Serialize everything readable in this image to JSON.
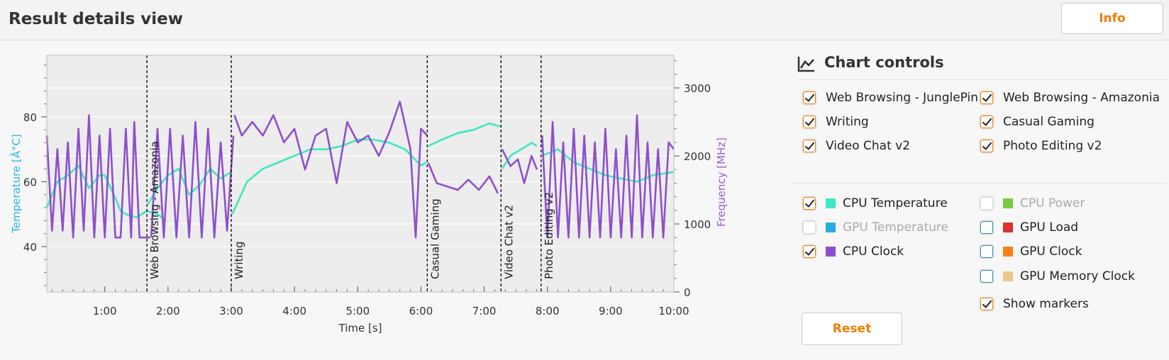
{
  "header": {
    "title": "Result details view",
    "info_label": "Info"
  },
  "controls": {
    "title": "Chart controls",
    "tests": [
      {
        "label": "Web Browsing - JunglePin",
        "checked": true
      },
      {
        "label": "Web Browsing - Amazonia",
        "checked": true
      },
      {
        "label": "Writing",
        "checked": true
      },
      {
        "label": "Casual Gaming",
        "checked": true
      },
      {
        "label": "Video Chat v2",
        "checked": true
      },
      {
        "label": "Photo Editing v2",
        "checked": true
      }
    ],
    "metrics": [
      {
        "label": "CPU Temperature",
        "checked": true,
        "enabled": true,
        "color": "#3de8c0"
      },
      {
        "label": "CPU Power",
        "checked": false,
        "enabled": false,
        "color": "#7ac943"
      },
      {
        "label": "GPU Temperature",
        "checked": false,
        "enabled": false,
        "color": "#29abe2"
      },
      {
        "label": "GPU Load",
        "checked": false,
        "enabled": true,
        "color": "#e03030"
      },
      {
        "label": "CPU Clock",
        "checked": true,
        "enabled": true,
        "color": "#8f4fcc"
      },
      {
        "label": "GPU Clock",
        "checked": false,
        "enabled": true,
        "color": "#f7821b"
      },
      {
        "label": "GPU Memory Clock",
        "checked": false,
        "enabled": true,
        "color": "#e8c98a"
      }
    ],
    "show_markers": {
      "label": "Show markers",
      "checked": true
    },
    "reset_label": "Reset"
  },
  "chart_data": {
    "type": "line",
    "xlabel": "Time [s]",
    "ylabel_left": "Temperature [Â°C]",
    "ylabel_right": "Frequency [MHz]",
    "xlim": [
      5,
      600
    ],
    "ylim_left": [
      26,
      99
    ],
    "ylim_right": [
      0,
      3480
    ],
    "x_ticks": [
      "1:00",
      "2:00",
      "3:00",
      "4:00",
      "5:00",
      "6:00",
      "7:00",
      "8:00",
      "9:00",
      "10:00"
    ],
    "x_tick_values": [
      60,
      120,
      180,
      240,
      300,
      360,
      420,
      480,
      540,
      600
    ],
    "y_left_ticks": [
      40,
      60,
      80
    ],
    "y_right_ticks": [
      0,
      1000,
      2000,
      3000
    ],
    "markers": [
      {
        "time": 100,
        "label": "Web Browsing - Amazonia"
      },
      {
        "time": 180,
        "label": "Writing"
      },
      {
        "time": 366,
        "label": "Casual Gaming"
      },
      {
        "time": 436,
        "label": "Video Chat v2"
      },
      {
        "time": 474,
        "label": "Photo Editing v2"
      }
    ],
    "series": [
      {
        "name": "CPU Temperature",
        "axis": "left",
        "color": "#3de8c0",
        "segments": [
          {
            "x": [
              5,
              15,
              25,
              35,
              45,
              55,
              60,
              70,
              75,
              80,
              90,
              100,
              110,
              118
            ],
            "y": [
              52,
              60,
              62,
              65,
              58,
              62,
              62,
              55,
              51,
              50,
              49,
              51,
              50,
              48
            ]
          },
          {
            "x": [
              101,
              110,
              120,
              130,
              140,
              150,
              160,
              170,
              180
            ],
            "y": [
              53,
              58,
              62,
              64,
              56,
              59,
              64,
              61,
              63
            ]
          },
          {
            "x": [
              181,
              195,
              210,
              225,
              240,
              255,
              270,
              285,
              300,
              315,
              330,
              345,
              360,
              365
            ],
            "y": [
              50,
              60,
              64,
              66,
              68,
              70,
              70,
              71,
              73,
              73,
              72,
              70,
              65,
              66
            ]
          },
          {
            "x": [
              367,
              380,
              395,
              410,
              425,
              436
            ],
            "y": [
              71,
              73,
              75,
              76,
              78,
              77
            ]
          },
          {
            "x": [
              437,
              445,
              455,
              465,
              470
            ],
            "y": [
              64,
              68,
              70,
              72,
              71
            ]
          },
          {
            "x": [
              475,
              490,
              505,
              520,
              535,
              550,
              565,
              580,
              600
            ],
            "y": [
              68,
              70,
              66,
              64,
              62,
              61,
              60,
              62,
              63
            ]
          }
        ]
      },
      {
        "name": "CPU Clock",
        "axis": "right",
        "color": "#8f4fcc",
        "segments": [
          {
            "x": [
              5,
              10,
              15,
              20,
              25,
              30,
              35,
              40,
              45,
              50,
              55,
              60,
              65,
              70,
              75,
              80,
              85,
              88,
              93,
              98,
              103
            ],
            "y": [
              2300,
              900,
              2100,
              900,
              2200,
              800,
              2400,
              900,
              2600,
              800,
              2300,
              800,
              2400,
              800,
              800,
              2400,
              800,
              2500,
              800,
              800,
              800
            ]
          },
          {
            "x": [
              104,
              110,
              116,
              122,
              128,
              134,
              140,
              146,
              152,
              158,
              164,
              170,
              176,
              182
            ],
            "y": [
              800,
              2400,
              800,
              2400,
              800,
              2300,
              800,
              2500,
              800,
              2400,
              800,
              2200,
              900,
              2300
            ]
          },
          {
            "x": [
              183,
              190,
              200,
              210,
              220,
              230,
              240,
              250,
              260,
              270,
              280,
              290,
              300,
              310,
              320,
              330,
              340,
              350,
              355,
              360,
              366
            ],
            "y": [
              2600,
              2300,
              2500,
              2300,
              2600,
              2200,
              2400,
              1800,
              2300,
              2400,
              1600,
              2500,
              2200,
              2300,
              2000,
              2350,
              2800,
              2100,
              800,
              2400,
              2300
            ]
          },
          {
            "x": [
              367,
              375,
              385,
              395,
              405,
              415,
              425,
              433
            ],
            "y": [
              1900,
              1600,
              1550,
              1500,
              1650,
              1500,
              1700,
              1450
            ]
          },
          {
            "x": [
              437,
              445,
              452,
              458,
              465,
              470
            ],
            "y": [
              2100,
              1850,
              1950,
              1600,
              2000,
              1800
            ]
          },
          {
            "x": [
              475,
              480,
              485,
              490,
              495,
              500,
              505,
              510,
              515,
              520,
              525,
              530,
              535,
              540,
              545,
              550,
              555,
              560,
              565,
              570,
              575,
              580,
              585,
              590,
              595,
              600
            ],
            "y": [
              2300,
              800,
              2500,
              800,
              2200,
              800,
              2400,
              800,
              2300,
              800,
              2200,
              800,
              2400,
              800,
              2100,
              800,
              2300,
              800,
              2600,
              800,
              2200,
              800,
              2100,
              800,
              2200,
              2100
            ]
          }
        ]
      }
    ]
  }
}
